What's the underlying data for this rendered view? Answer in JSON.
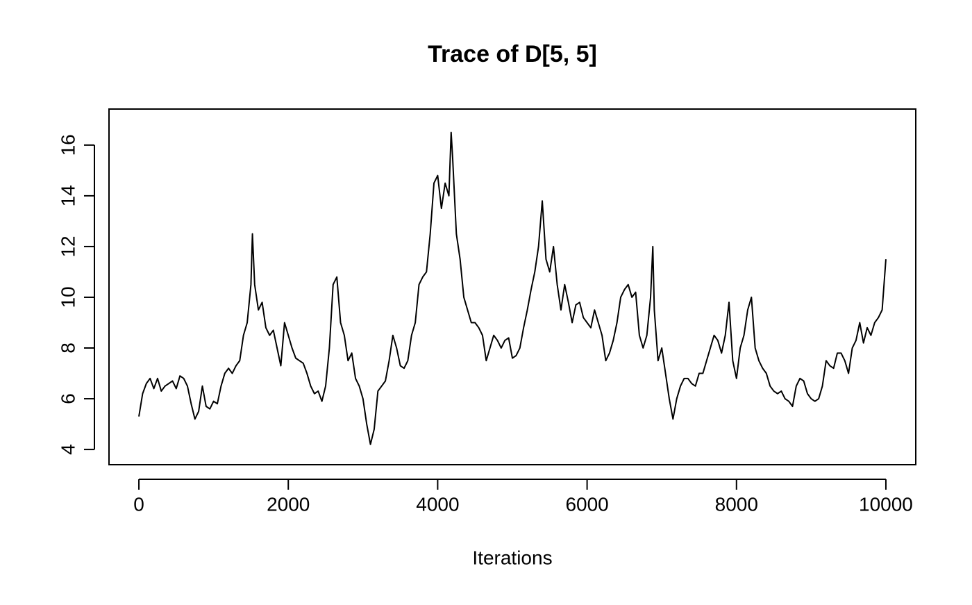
{
  "chart_data": {
    "type": "line",
    "title": "Trace of D[5, 5]",
    "xlabel": "Iterations",
    "color": "#000000",
    "xlim": [
      -400,
      10400
    ],
    "ylim": [
      3.4,
      17.42
    ],
    "xticks": [
      0,
      2000,
      4000,
      6000,
      8000,
      10000
    ],
    "yticks": [
      4,
      6,
      8,
      10,
      12,
      14,
      16
    ],
    "grid": false,
    "x": [
      0,
      50,
      100,
      150,
      200,
      250,
      300,
      350,
      400,
      450,
      500,
      550,
      600,
      650,
      700,
      750,
      800,
      850,
      900,
      950,
      1000,
      1050,
      1100,
      1150,
      1200,
      1250,
      1300,
      1350,
      1400,
      1450,
      1500,
      1520,
      1550,
      1600,
      1650,
      1700,
      1750,
      1800,
      1850,
      1900,
      1950,
      2000,
      2050,
      2100,
      2150,
      2200,
      2250,
      2300,
      2350,
      2400,
      2450,
      2500,
      2550,
      2600,
      2650,
      2700,
      2750,
      2800,
      2850,
      2900,
      2950,
      3000,
      3050,
      3100,
      3150,
      3200,
      3250,
      3300,
      3350,
      3400,
      3450,
      3500,
      3550,
      3600,
      3650,
      3700,
      3750,
      3800,
      3850,
      3900,
      3950,
      4000,
      4050,
      4100,
      4150,
      4180,
      4200,
      4250,
      4300,
      4350,
      4400,
      4450,
      4500,
      4550,
      4600,
      4650,
      4700,
      4750,
      4800,
      4850,
      4900,
      4950,
      5000,
      5050,
      5100,
      5150,
      5200,
      5250,
      5300,
      5350,
      5400,
      5450,
      5500,
      5550,
      5600,
      5650,
      5700,
      5750,
      5800,
      5850,
      5900,
      5950,
      6000,
      6050,
      6100,
      6150,
      6200,
      6250,
      6300,
      6350,
      6400,
      6450,
      6500,
      6550,
      6600,
      6650,
      6700,
      6750,
      6800,
      6850,
      6880,
      6900,
      6950,
      7000,
      7050,
      7100,
      7150,
      7200,
      7250,
      7300,
      7350,
      7400,
      7450,
      7500,
      7550,
      7600,
      7650,
      7700,
      7750,
      7800,
      7850,
      7900,
      7950,
      8000,
      8050,
      8100,
      8150,
      8200,
      8250,
      8300,
      8350,
      8400,
      8450,
      8500,
      8550,
      8600,
      8650,
      8700,
      8750,
      8800,
      8850,
      8900,
      8950,
      9000,
      9050,
      9100,
      9150,
      9200,
      9250,
      9300,
      9350,
      9400,
      9450,
      9500,
      9550,
      9600,
      9650,
      9700,
      9750,
      9800,
      9850,
      9900,
      9950,
      10000
    ],
    "values": [
      5.3,
      6.2,
      6.6,
      6.8,
      6.4,
      6.8,
      6.3,
      6.5,
      6.6,
      6.7,
      6.4,
      6.9,
      6.8,
      6.5,
      5.8,
      5.2,
      5.5,
      6.5,
      5.7,
      5.6,
      5.9,
      5.8,
      6.5,
      7.0,
      7.2,
      7.0,
      7.3,
      7.5,
      8.5,
      9.0,
      10.5,
      12.5,
      10.5,
      9.5,
      9.8,
      8.8,
      8.5,
      8.7,
      8.0,
      7.3,
      9.0,
      8.5,
      8.0,
      7.6,
      7.5,
      7.4,
      7.0,
      6.5,
      6.2,
      6.3,
      5.9,
      6.5,
      8.0,
      10.5,
      10.8,
      9.0,
      8.5,
      7.5,
      7.8,
      6.8,
      6.5,
      6.0,
      5.0,
      4.2,
      4.8,
      6.3,
      6.5,
      6.7,
      7.5,
      8.5,
      8.0,
      7.3,
      7.2,
      7.5,
      8.5,
      9.0,
      10.5,
      10.8,
      11.0,
      12.5,
      14.5,
      14.8,
      13.5,
      14.5,
      14.0,
      16.5,
      15.5,
      12.5,
      11.5,
      10.0,
      9.5,
      9.0,
      9.0,
      8.8,
      8.5,
      7.5,
      8.0,
      8.5,
      8.3,
      8.0,
      8.3,
      8.4,
      7.6,
      7.7,
      8.0,
      8.8,
      9.5,
      10.3,
      11.0,
      12.0,
      13.8,
      11.5,
      11.0,
      12.0,
      10.5,
      9.5,
      10.5,
      9.8,
      9.0,
      9.7,
      9.8,
      9.2,
      9.0,
      8.8,
      9.5,
      9.0,
      8.5,
      7.5,
      7.8,
      8.3,
      9.0,
      10.0,
      10.3,
      10.5,
      10.0,
      10.2,
      8.5,
      8.0,
      8.5,
      10.0,
      12.0,
      9.5,
      7.5,
      8.0,
      7.0,
      6.0,
      5.2,
      6.0,
      6.5,
      6.8,
      6.8,
      6.6,
      6.5,
      7.0,
      7.0,
      7.5,
      8.0,
      8.5,
      8.3,
      7.8,
      8.5,
      9.8,
      7.5,
      6.8,
      8.0,
      8.5,
      9.5,
      10.0,
      8.0,
      7.5,
      7.2,
      7.0,
      6.5,
      6.3,
      6.2,
      6.3,
      6.0,
      5.9,
      5.7,
      6.5,
      6.8,
      6.7,
      6.2,
      6.0,
      5.9,
      6.0,
      6.5,
      7.5,
      7.3,
      7.2,
      7.8,
      7.8,
      7.5,
      7.0,
      8.0,
      8.3,
      9.0,
      8.2,
      8.8,
      8.5,
      9.0,
      9.2,
      9.5,
      11.5
    ]
  }
}
